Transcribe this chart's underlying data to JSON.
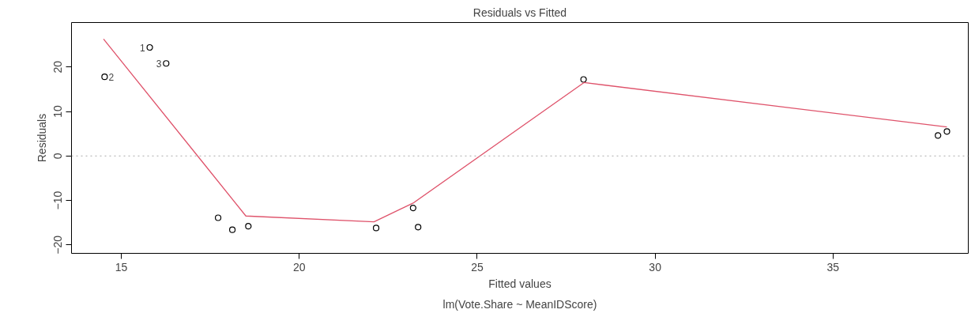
{
  "chart_data": {
    "type": "scatter",
    "title": "Residuals vs Fitted",
    "xlabel": "Fitted values",
    "ylabel": "Residuals",
    "x": [
      14.53,
      15.8,
      16.26,
      17.72,
      18.12,
      18.57,
      22.16,
      23.2,
      23.34,
      27.99,
      37.95,
      38.2
    ],
    "series": [
      {
        "color": "#000000",
        "marker": "circle",
        "values": [
          17.8,
          24.4,
          20.8,
          -13.9,
          -16.6,
          -15.8,
          -16.2,
          -11.7,
          -16.0,
          17.2,
          4.6,
          5.5
        ]
      },
      {
        "type": "line",
        "color": "#df536b",
        "marker": "none",
        "x": [
          14.5,
          18.5,
          22.1,
          23.2,
          28.0,
          38.2
        ],
        "values": [
          26.3,
          -13.5,
          -14.8,
          -10.6,
          16.5,
          6.5
        ]
      }
    ],
    "xlim": [
      13.6,
      38.8
    ],
    "ylim": [
      -21.9,
      30
    ],
    "xticks": [
      15,
      20,
      25,
      30,
      35
    ],
    "yticks": [
      -20,
      -10,
      0,
      10,
      20
    ],
    "grid": false,
    "ref_lines": [
      {
        "axis": "y",
        "value": 0,
        "color": "#aaaaaa",
        "line_style": "dotted"
      }
    ],
    "annotations": [
      {
        "text": "2",
        "x": 14.53,
        "y": 17.8
      },
      {
        "text": "1",
        "x": 15.8,
        "y": 24.4
      },
      {
        "text": "3",
        "x": 16.26,
        "y": 20.8
      },
      "lm(Vote.Share ~ MeanIDScore)"
    ]
  }
}
